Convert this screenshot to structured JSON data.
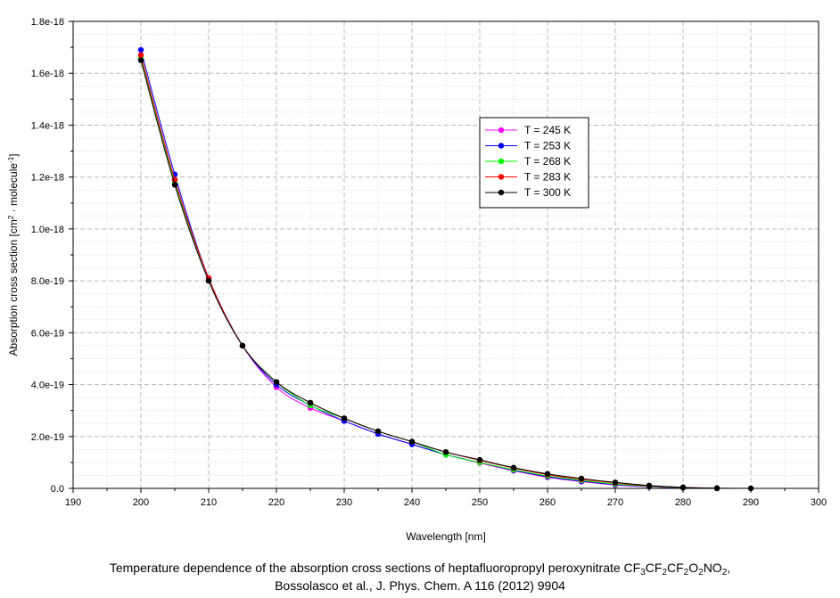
{
  "chart_data": {
    "type": "line",
    "xlabel": "Wavelength [nm]",
    "ylabel_parts": {
      "main": "Absorption cross section [cm",
      "sup1": "2",
      "mid": " · molecule",
      "sup2": "-1",
      "end": "]"
    },
    "xlim": [
      190,
      300
    ],
    "ylim": [
      0,
      1.8e-18
    ],
    "x_ticks": [
      "190",
      "200",
      "210",
      "220",
      "230",
      "240",
      "250",
      "260",
      "270",
      "280",
      "290",
      "300"
    ],
    "y_ticks": [
      "0.0",
      "2.0e-19",
      "4.0e-19",
      "6.0e-19",
      "8.0e-19",
      "1.0e-18",
      "1.2e-18",
      "1.4e-18",
      "1.6e-18",
      "1.8e-18"
    ],
    "grid": true,
    "legend_position": "upper-right",
    "series": [
      {
        "name": "T = 245 K",
        "color": "#ff00ff",
        "x": [
          200,
          205,
          210,
          215,
          220,
          225,
          230,
          235,
          240,
          245,
          250,
          255,
          260,
          265,
          270,
          275,
          280,
          285
        ],
        "y": [
          1.67e-18,
          1.19e-18,
          8.1e-19,
          5.5e-19,
          3.9e-19,
          3.1e-19,
          2.6e-19,
          2.1e-19,
          1.7e-19,
          1.3e-19,
          9.8e-20,
          6.8e-20,
          4.3e-20,
          2.6e-20,
          1.3e-20,
          6e-21,
          2e-21,
          0
        ]
      },
      {
        "name": "T = 253 K",
        "color": "#0000ff",
        "x": [
          200,
          205,
          210,
          215,
          220,
          225,
          230,
          235,
          240,
          245,
          250,
          255,
          260,
          265,
          270,
          275,
          280,
          285
        ],
        "y": [
          1.69e-18,
          1.21e-18,
          8.1e-19,
          5.5e-19,
          4e-19,
          3.2e-19,
          2.6e-19,
          2.1e-19,
          1.7e-19,
          1.3e-19,
          1e-19,
          7e-20,
          4.5e-20,
          2.8e-20,
          1.5e-20,
          7e-21,
          2e-21,
          0
        ]
      },
      {
        "name": "T = 268 K",
        "color": "#00ff00",
        "x": [
          200,
          205,
          210,
          215,
          220,
          225,
          230,
          235,
          240,
          245,
          250,
          255,
          260,
          265,
          270,
          275,
          280,
          285
        ],
        "y": [
          1.66e-18,
          1.18e-18,
          8e-19,
          5.5e-19,
          4.1e-19,
          3.2e-19,
          2.7e-19,
          2.2e-19,
          1.8e-19,
          1.3e-19,
          1e-19,
          7.2e-20,
          4.8e-20,
          3.1e-20,
          1.7e-20,
          8e-21,
          3e-21,
          0
        ]
      },
      {
        "name": "T = 283 K",
        "color": "#ff0000",
        "x": [
          200,
          205,
          210,
          215,
          220,
          225,
          230,
          235,
          240,
          245,
          250,
          255,
          260,
          265,
          270,
          275,
          280,
          285
        ],
        "y": [
          1.67e-18,
          1.19e-18,
          8.1e-19,
          5.5e-19,
          4.1e-19,
          3.3e-19,
          2.7e-19,
          2.2e-19,
          1.8e-19,
          1.4e-19,
          1.08e-19,
          7.8e-20,
          5.3e-20,
          3.5e-20,
          2.1e-20,
          1e-20,
          4e-21,
          1e-21
        ]
      },
      {
        "name": "T = 300 K",
        "color": "#000000",
        "x": [
          200,
          205,
          210,
          215,
          220,
          225,
          230,
          235,
          240,
          245,
          250,
          255,
          260,
          265,
          270,
          275,
          280,
          285,
          290
        ],
        "y": [
          1.65e-18,
          1.17e-18,
          8e-19,
          5.5e-19,
          4.1e-19,
          3.3e-19,
          2.7e-19,
          2.2e-19,
          1.8e-19,
          1.4e-19,
          1.1e-19,
          8e-20,
          5.6e-20,
          3.8e-20,
          2.3e-20,
          1.1e-20,
          4e-21,
          1e-21,
          0
        ]
      }
    ],
    "title": "",
    "caption": {
      "line1_parts": [
        "Temperature dependence of the absorption cross sections of heptafluoropropyl peroxynitrate CF",
        "3",
        "CF",
        "2",
        "CF",
        "2",
        "O",
        "2",
        "NO",
        "2",
        ","
      ],
      "line2": "Bossolasco et al., J. Phys. Chem. A 116 (2012) 9904"
    }
  }
}
